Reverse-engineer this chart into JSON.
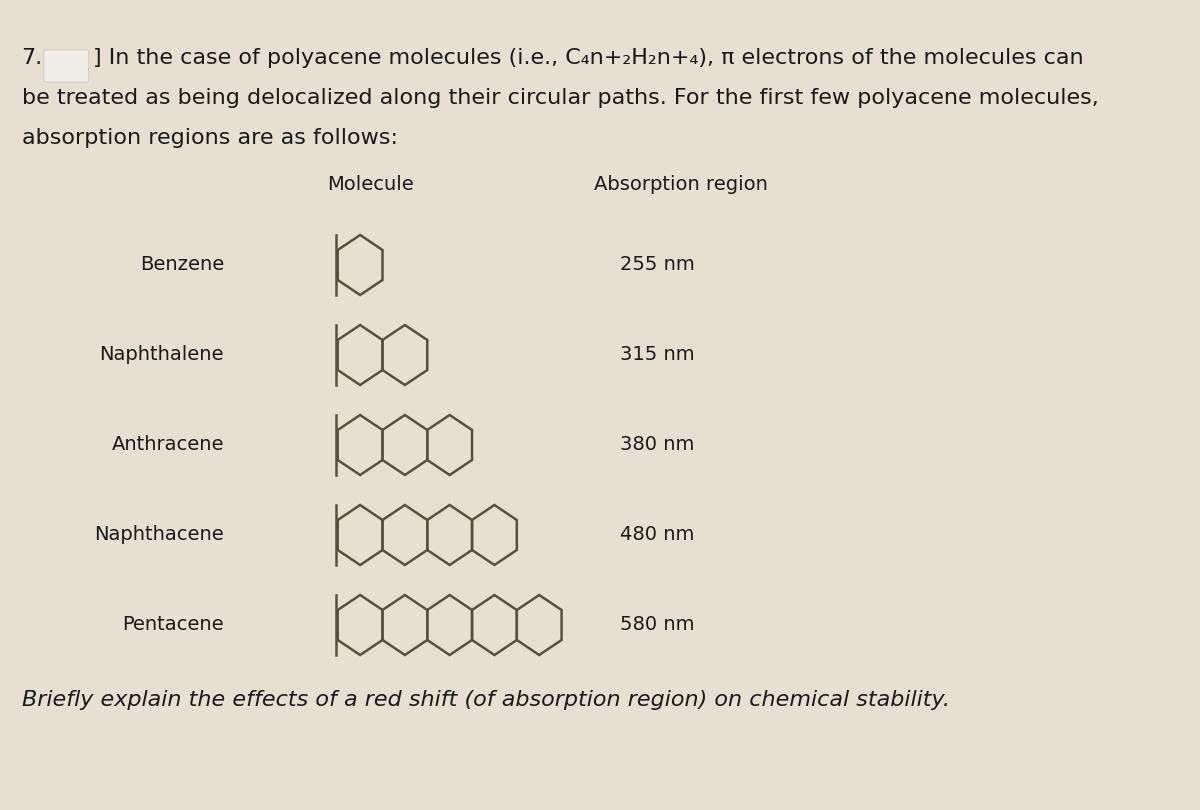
{
  "background_color": "#e8dfd3",
  "text_color": "#1a1a1a",
  "ring_edge_color": "#5a5040",
  "blot_color": "#ffffff",
  "col_molecule": "Molecule",
  "col_absorption": "Absorption region",
  "molecules": [
    "Benzene",
    "Naphthalene",
    "Anthracene",
    "Naphthacene",
    "Pentacene"
  ],
  "absorption": [
    "255 nm",
    "315 nm",
    "380 nm",
    "480 nm",
    "580 nm"
  ],
  "num_rings": [
    1,
    2,
    3,
    4,
    5
  ],
  "footer_text": "Briefly explain the effects of a red shift (of absorption region) on chemical stability.",
  "font_size_body": 15,
  "font_size_header": 14,
  "font_size_label": 14
}
